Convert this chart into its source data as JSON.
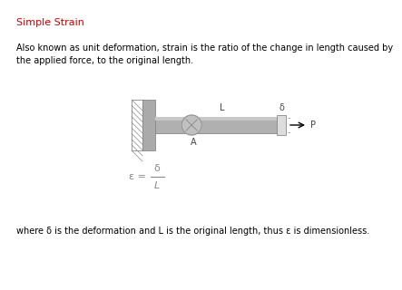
{
  "title": "Simple Strain",
  "title_color": "#cc0000",
  "title_fontsize": 8,
  "body_text": "Also known as unit deformation, strain is the ratio of the change in length caused by\nthe applied force, to the original length.",
  "body_fontsize": 7,
  "footer_text": "where δ is the deformation and L is the original length, thus ε is dimensionless.",
  "footer_fontsize": 7,
  "background_color": "#ffffff",
  "wall_color": "#aaaaaa",
  "wall_hatch_color": "#888888",
  "rod_color": "#b0b0b0",
  "rod_edge_color": "#888888",
  "block_color": "#dddddd",
  "formula_color": "#888888",
  "label_color": "#444444"
}
